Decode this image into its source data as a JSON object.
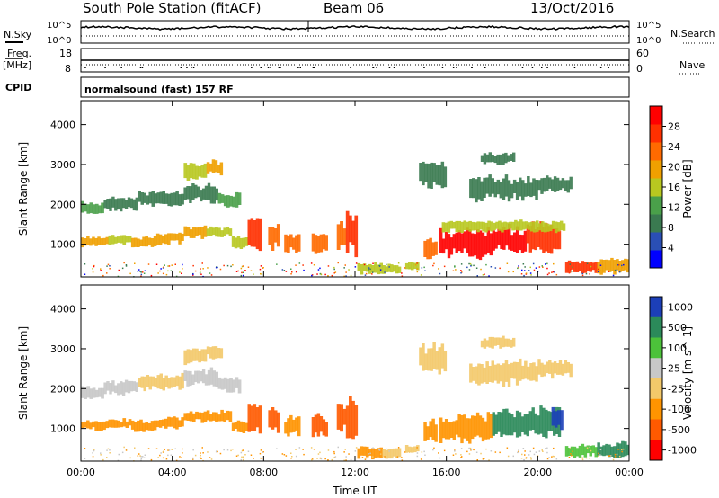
{
  "header": {
    "station": "South Pole Station (fitACF)",
    "beam": "Beam 06",
    "date": "13/Oct/2016"
  },
  "colors": {
    "power": [
      "#0000ff",
      "#2a4fb5",
      "#3a7a50",
      "#4aa04a",
      "#b8c820",
      "#f0a000",
      "#ff6a00",
      "#ff3000",
      "#ff0000"
    ],
    "velocity": [
      "#1c3fb8",
      "#2b8a5a",
      "#4cc23a",
      "#c8c8c8",
      "#f3c96a",
      "#ff9400",
      "#ff5a00",
      "#ff0000"
    ]
  },
  "chart_data": [
    {
      "type": "line",
      "name": "noise",
      "ylabel": "N.Sky",
      "ylabel_right": "N.Search",
      "yticks": [
        "10^5",
        "10^0"
      ],
      "yticks_right": [
        "10^5",
        "10^0"
      ]
    },
    {
      "type": "line",
      "name": "frequency",
      "ylabel": "Freq.",
      "yunit": "[MHz]",
      "ylabel_right": "Nave",
      "yticks": [
        "18",
        "8"
      ],
      "yticks_right": [
        "60",
        "0"
      ]
    },
    {
      "type": "table",
      "name": "cpid",
      "label": "CPID",
      "text": "normalsound (fast) 157 RF"
    },
    {
      "type": "heatmap",
      "name": "power",
      "ylabel": "Slant Range [km]",
      "ylim": [
        180,
        4600
      ],
      "yticks": [
        1000,
        2000,
        3000,
        4000
      ],
      "colorbar_label": "Power [dB]",
      "colorbar_ticks": [
        4,
        8,
        12,
        16,
        20,
        24,
        28
      ],
      "colorbar_range": [
        0,
        32
      ],
      "cells": [
        [
          0.0,
          1.0,
          1750,
          2050,
          0.35
        ],
        [
          1.0,
          2.5,
          1850,
          2200,
          0.3
        ],
        [
          2.5,
          4.5,
          1950,
          2350,
          0.3
        ],
        [
          4.5,
          6.0,
          2050,
          2500,
          0.3
        ],
        [
          6.0,
          7.0,
          1900,
          2300,
          0.35
        ],
        [
          4.5,
          5.5,
          2600,
          3000,
          0.55
        ],
        [
          5.5,
          6.2,
          2750,
          3100,
          0.6
        ],
        [
          0.0,
          1.2,
          950,
          1200,
          0.6
        ],
        [
          1.2,
          2.2,
          1000,
          1250,
          0.55
        ],
        [
          2.2,
          3.3,
          900,
          1200,
          0.6
        ],
        [
          3.3,
          4.5,
          1000,
          1300,
          0.6
        ],
        [
          4.5,
          5.5,
          1150,
          1450,
          0.6
        ],
        [
          5.5,
          6.6,
          1150,
          1450,
          0.55
        ],
        [
          6.6,
          7.3,
          900,
          1200,
          0.5
        ],
        [
          7.3,
          7.9,
          900,
          1700,
          0.85
        ],
        [
          8.2,
          8.7,
          900,
          1500,
          0.75
        ],
        [
          8.9,
          9.6,
          800,
          1300,
          0.8
        ],
        [
          10.1,
          10.8,
          750,
          1350,
          0.8
        ],
        [
          11.2,
          11.6,
          900,
          1600,
          0.75
        ],
        [
          11.6,
          12.1,
          700,
          1800,
          0.9
        ],
        [
          12.1,
          13.2,
          250,
          550,
          0.55
        ],
        [
          13.2,
          14.0,
          250,
          500,
          0.5
        ],
        [
          14.2,
          14.8,
          350,
          600,
          0.45
        ],
        [
          15.0,
          15.6,
          650,
          1200,
          0.75
        ],
        [
          15.7,
          16.5,
          700,
          1350,
          0.95
        ],
        [
          16.5,
          18.0,
          650,
          1400,
          1.0
        ],
        [
          18.0,
          19.5,
          750,
          1450,
          0.95
        ],
        [
          19.5,
          21.0,
          800,
          1550,
          0.85
        ],
        [
          15.8,
          21.2,
          1300,
          1600,
          0.5
        ],
        [
          21.2,
          22.6,
          280,
          600,
          0.9
        ],
        [
          22.6,
          24.0,
          250,
          650,
          0.6
        ],
        [
          17.0,
          20.0,
          2100,
          2700,
          0.25
        ],
        [
          20.0,
          21.5,
          2300,
          2700,
          0.2
        ],
        [
          17.5,
          19.0,
          3000,
          3300,
          0.2
        ],
        [
          14.8,
          16.0,
          2400,
          3100,
          0.2
        ]
      ]
    },
    {
      "type": "heatmap",
      "name": "velocity",
      "ylabel": "Slant Range [km]",
      "xlabel": "Time UT",
      "ylim": [
        180,
        4600
      ],
      "yticks": [
        1000,
        2000,
        3000,
        4000
      ],
      "xticks": [
        "00:00",
        "04:00",
        "08:00",
        "12:00",
        "16:00",
        "20:00",
        "00:00"
      ],
      "xlim": [
        0,
        24
      ],
      "colorbar_label": "Velocity [m s^-1]",
      "colorbar_ticks": [
        "1000",
        "500",
        "100",
        "25",
        "-25",
        "-100",
        "-500",
        "-1000"
      ],
      "cells": [
        [
          0.0,
          1.0,
          1750,
          2050,
          3
        ],
        [
          1.0,
          2.5,
          1850,
          2200,
          3
        ],
        [
          2.5,
          4.5,
          1950,
          2350,
          4
        ],
        [
          4.5,
          6.0,
          2050,
          2500,
          3
        ],
        [
          6.0,
          7.0,
          1900,
          2300,
          3
        ],
        [
          4.5,
          5.5,
          2600,
          3000,
          4
        ],
        [
          5.5,
          6.2,
          2750,
          3100,
          4
        ],
        [
          0.0,
          1.2,
          950,
          1200,
          5
        ],
        [
          1.2,
          2.2,
          1000,
          1250,
          5
        ],
        [
          2.2,
          3.3,
          900,
          1200,
          5
        ],
        [
          3.3,
          4.5,
          1000,
          1300,
          5
        ],
        [
          4.5,
          5.5,
          1150,
          1450,
          5
        ],
        [
          5.5,
          6.6,
          1150,
          1450,
          5
        ],
        [
          6.6,
          7.3,
          900,
          1200,
          5
        ],
        [
          7.3,
          7.9,
          900,
          1700,
          6
        ],
        [
          8.2,
          8.7,
          900,
          1500,
          6
        ],
        [
          8.9,
          9.6,
          800,
          1300,
          5
        ],
        [
          10.1,
          10.8,
          750,
          1350,
          6
        ],
        [
          11.2,
          11.6,
          900,
          1600,
          6
        ],
        [
          11.6,
          12.1,
          700,
          1800,
          6
        ],
        [
          12.1,
          13.2,
          250,
          550,
          5
        ],
        [
          13.2,
          14.0,
          250,
          500,
          4
        ],
        [
          14.2,
          14.8,
          350,
          600,
          4
        ],
        [
          15.0,
          15.6,
          650,
          1200,
          5
        ],
        [
          15.7,
          16.5,
          700,
          1350,
          5
        ],
        [
          16.5,
          18.0,
          650,
          1400,
          5
        ],
        [
          18.0,
          19.5,
          750,
          1450,
          1
        ],
        [
          19.5,
          21.0,
          800,
          1550,
          1
        ],
        [
          20.6,
          21.1,
          1000,
          1500,
          0
        ],
        [
          21.2,
          22.6,
          280,
          600,
          2
        ],
        [
          22.6,
          24.0,
          250,
          650,
          1
        ],
        [
          17.0,
          20.0,
          2100,
          2700,
          4
        ],
        [
          20.0,
          21.5,
          2300,
          2700,
          4
        ],
        [
          17.5,
          19.0,
          3000,
          3300,
          4
        ],
        [
          14.8,
          16.0,
          2400,
          3100,
          4
        ]
      ]
    }
  ]
}
